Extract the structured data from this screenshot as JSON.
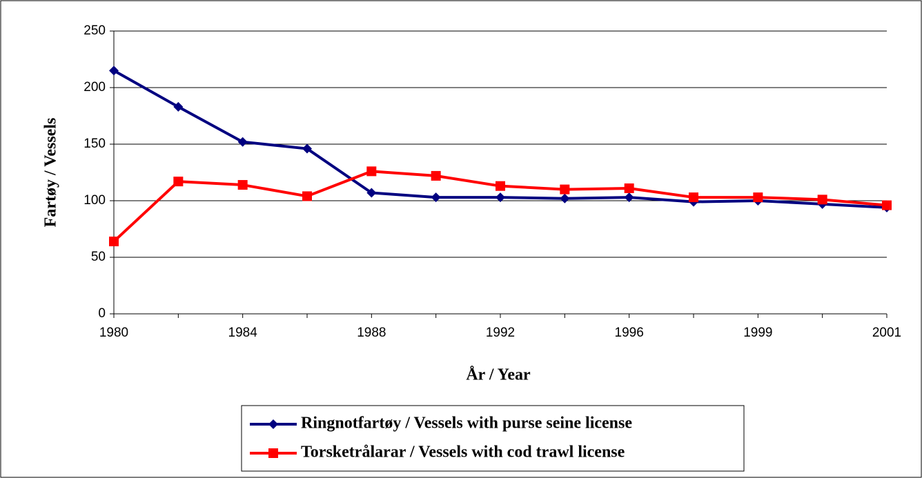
{
  "chart_data": {
    "type": "line",
    "x_label": "År / Year",
    "y_label": "Fartøy / Vessels",
    "categories": [
      "1980",
      null,
      "1984",
      null,
      "1988",
      null,
      "1992",
      null,
      "1996",
      null,
      "1999",
      null,
      "2001"
    ],
    "series": [
      {
        "name": "Ringnotfartøy / Vessels with purse seine license",
        "color": "#000080",
        "marker": "diamond",
        "values": [
          215,
          183,
          152,
          146,
          107,
          103,
          103,
          102,
          103,
          99,
          100,
          97,
          94
        ]
      },
      {
        "name": "Torsketrålarar / Vessels with cod trawl license",
        "color": "#ff0000",
        "marker": "square",
        "values": [
          64,
          117,
          114,
          104,
          126,
          122,
          113,
          110,
          111,
          103,
          103,
          101,
          96
        ]
      }
    ],
    "ylim": [
      0,
      250
    ],
    "yticks": [
      0,
      50,
      100,
      150,
      200,
      250
    ],
    "grid": true,
    "legend": "bottom"
  }
}
